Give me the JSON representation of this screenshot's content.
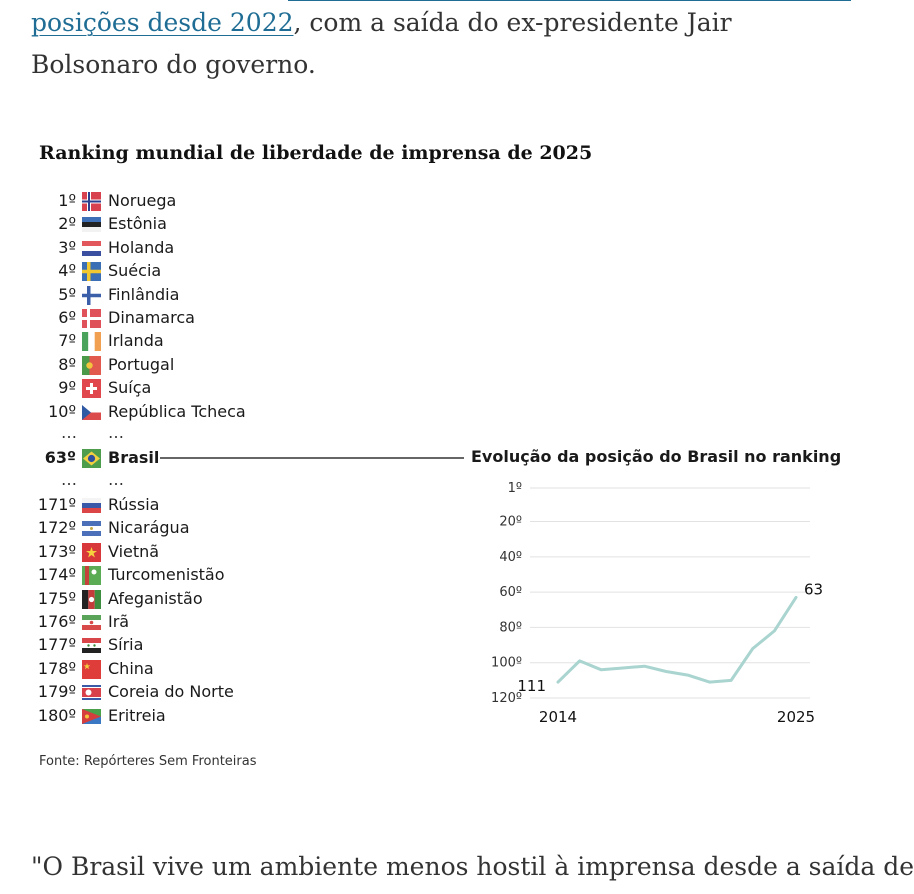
{
  "article": {
    "top_link": "posições desde 2022",
    "top_rest": ", com a saída do ex-presidente Jair Bolsonaro do governo.",
    "bottom_text": "\"O Brasil vive um ambiente menos hostil à imprensa desde a saída de"
  },
  "source": "Fonte: Repórteres Sem Fronteiras",
  "chart_data": [
    {
      "type": "table",
      "title": "Ranking mundial de liberdade de imprensa de 2025",
      "ellipsis": "…",
      "top": [
        {
          "rank": "1º",
          "country": "Noruega",
          "flag": "norway-flag"
        },
        {
          "rank": "2º",
          "country": "Estônia",
          "flag": "estonia-flag"
        },
        {
          "rank": "3º",
          "country": "Holanda",
          "flag": "netherlands-flag"
        },
        {
          "rank": "4º",
          "country": "Suécia",
          "flag": "sweden-flag"
        },
        {
          "rank": "5º",
          "country": "Finlândia",
          "flag": "finland-flag"
        },
        {
          "rank": "6º",
          "country": "Dinamarca",
          "flag": "denmark-flag"
        },
        {
          "rank": "7º",
          "country": "Irlanda",
          "flag": "ireland-flag"
        },
        {
          "rank": "8º",
          "country": "Portugal",
          "flag": "portugal-flag"
        },
        {
          "rank": "9º",
          "country": "Suíça",
          "flag": "switzerland-flag"
        },
        {
          "rank": "10º",
          "country": "República Tcheca",
          "flag": "czech-flag"
        }
      ],
      "highlight": {
        "rank": "63º",
        "country": "Brasil",
        "flag": "brazil-flag"
      },
      "bottom": [
        {
          "rank": "171º",
          "country": "Rússia",
          "flag": "russia-flag"
        },
        {
          "rank": "172º",
          "country": "Nicarágua",
          "flag": "nicaragua-flag"
        },
        {
          "rank": "173º",
          "country": "Vietnã",
          "flag": "vietnam-flag"
        },
        {
          "rank": "174º",
          "country": "Turcomenistão",
          "flag": "turkmenistan-flag"
        },
        {
          "rank": "175º",
          "country": "Afeganistão",
          "flag": "afghanistan-flag"
        },
        {
          "rank": "176º",
          "country": "Irã",
          "flag": "iran-flag"
        },
        {
          "rank": "177º",
          "country": "Síria",
          "flag": "syria-flag"
        },
        {
          "rank": "178º",
          "country": "China",
          "flag": "china-flag"
        },
        {
          "rank": "179º",
          "country": "Coreia do Norte",
          "flag": "north-korea-flag"
        },
        {
          "rank": "180º",
          "country": "Eritreia",
          "flag": "eritrea-flag"
        }
      ]
    },
    {
      "type": "line",
      "title": "Evolução da posição do Brasil no ranking",
      "x": [
        2014,
        2015,
        2016,
        2017,
        2018,
        2019,
        2020,
        2021,
        2022,
        2023,
        2024,
        2025
      ],
      "y": [
        111,
        99,
        104,
        103,
        102,
        105,
        107,
        111,
        110,
        92,
        82,
        63
      ],
      "x_tick_labels": [
        "2014",
        "2025"
      ],
      "y_ticks": [
        1,
        20,
        40,
        60,
        80,
        100,
        120
      ],
      "y_tick_labels": [
        "1º",
        "20º",
        "40º",
        "60º",
        "80º",
        "100º",
        "120º"
      ],
      "ylim": [
        1,
        120
      ],
      "y_inverted": true,
      "start_label": "111",
      "end_label": "63",
      "grid": true,
      "colors": {
        "line": "#a9d4cf",
        "grid": "#e2e2e2"
      }
    }
  ]
}
